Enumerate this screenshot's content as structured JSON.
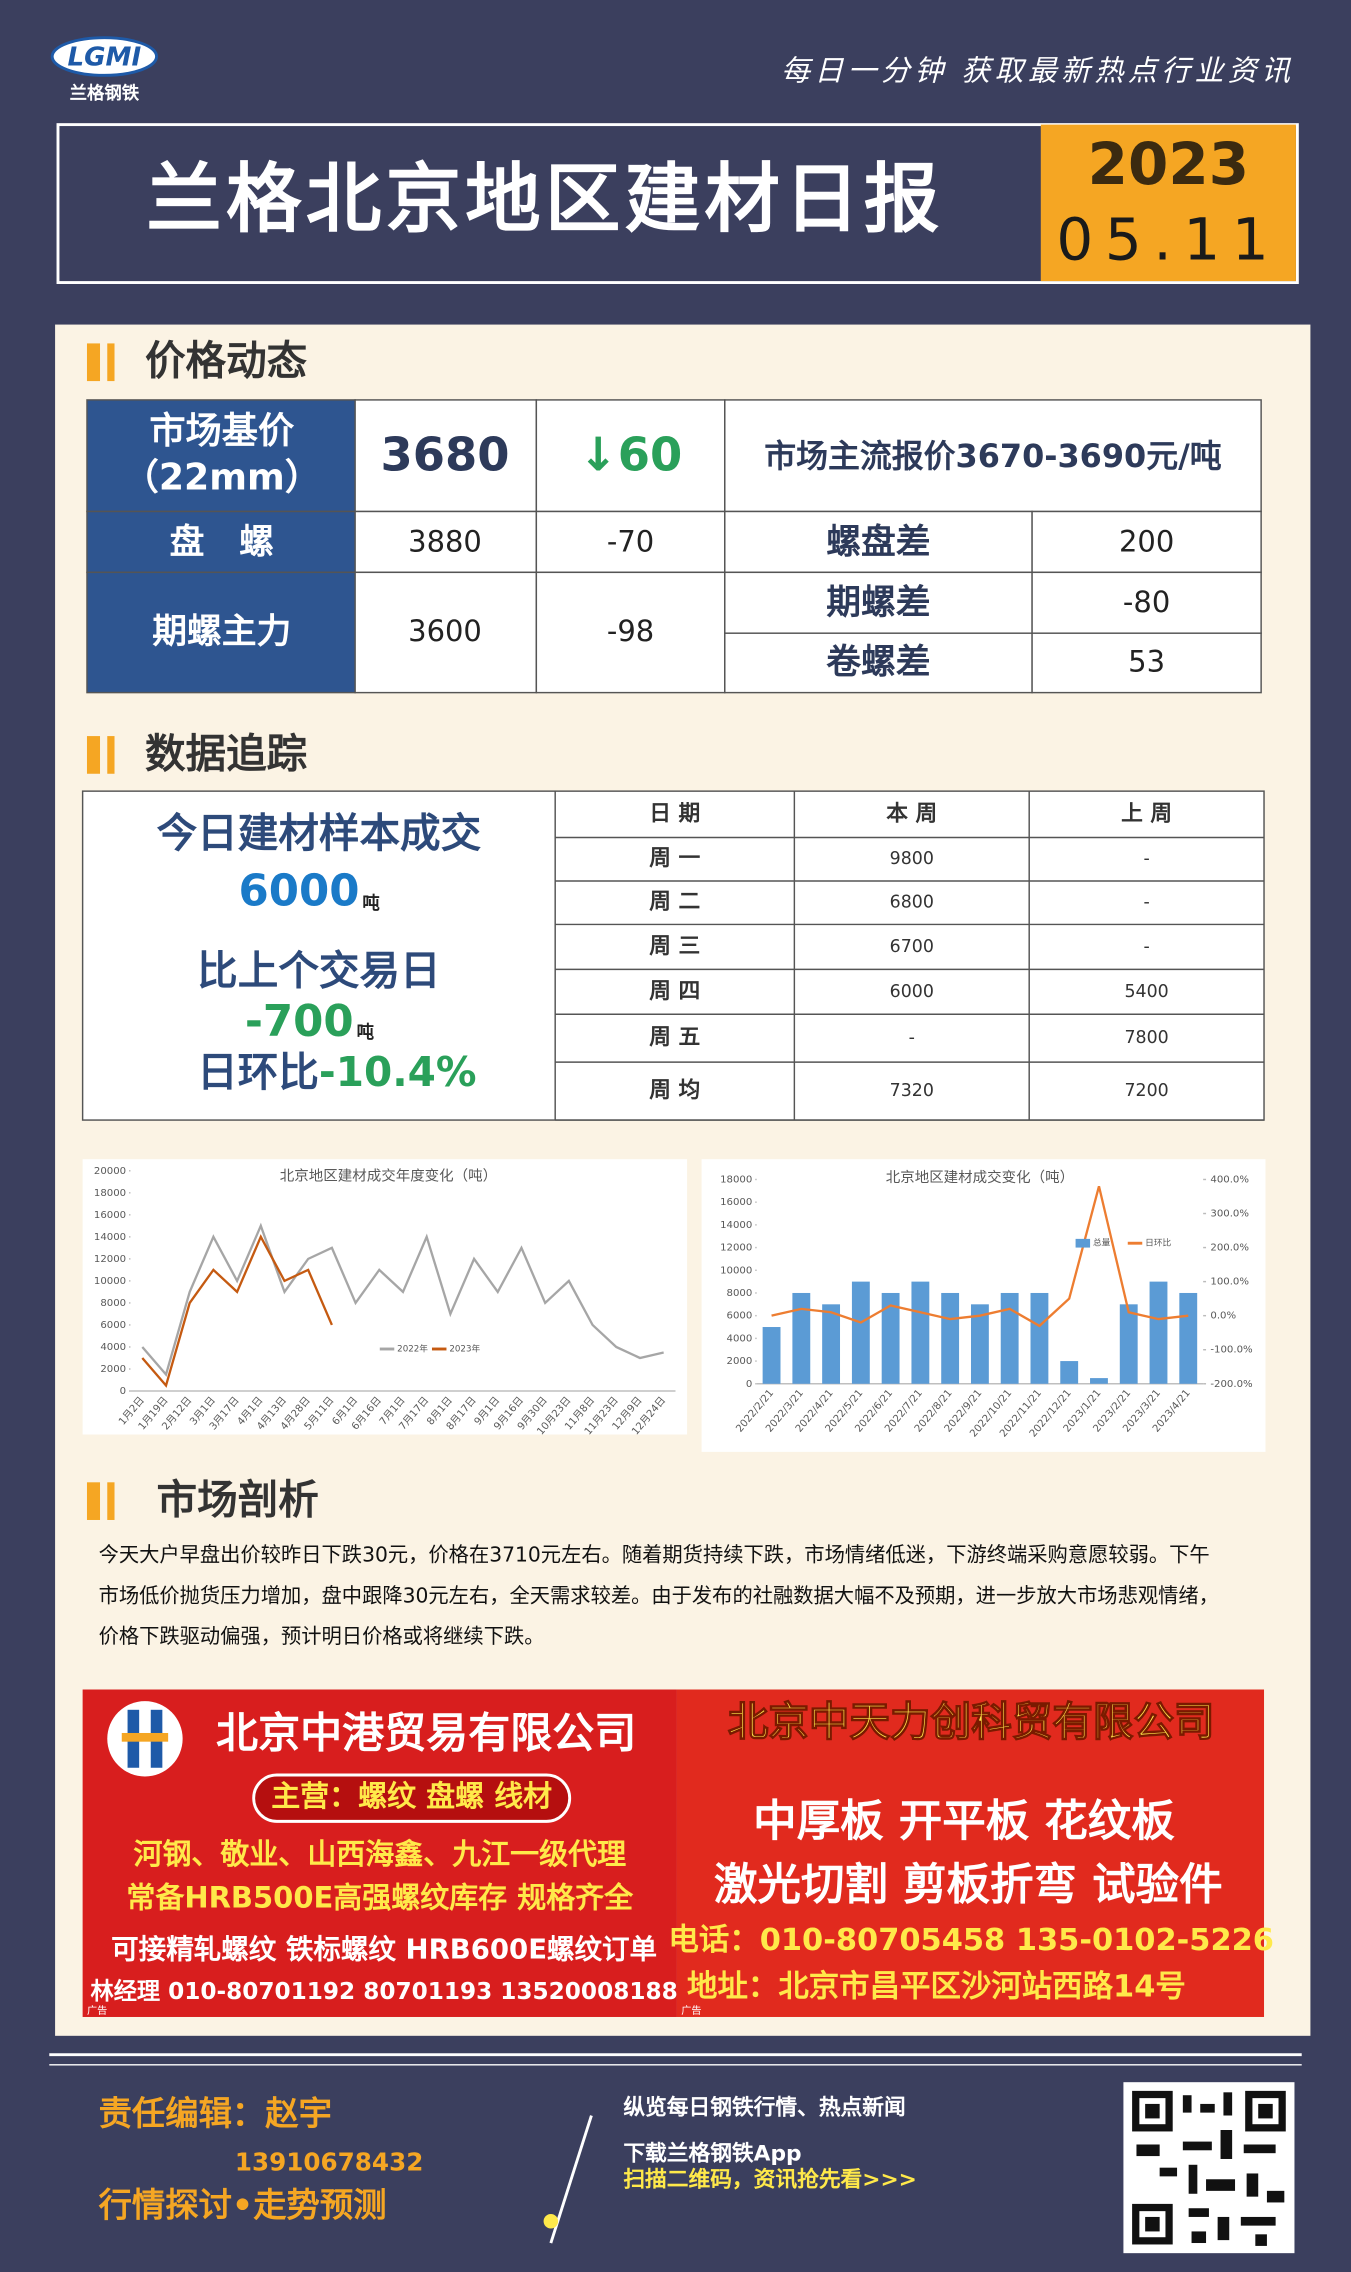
{
  "header": {
    "logo_text": "LGMI",
    "logo_name": "兰格钢铁",
    "slogan": "每日一分钟  获取最新热点行业资讯",
    "title": "兰格北京地区建材日报",
    "year": "2023",
    "date": "05.11"
  },
  "price": {
    "heading": "价格动态",
    "base_label": [
      "市场基价",
      "（22mm）"
    ],
    "base_price": "3680",
    "base_change": "↓60",
    "mainstream": "市场主流报价3670-3690元/吨",
    "rows": [
      [
        "盘　螺",
        "3880",
        "-70"
      ],
      [
        "期螺主力",
        "3600",
        "-98"
      ]
    ],
    "spreads": [
      [
        "螺盘差",
        "200"
      ],
      [
        "期螺差",
        "-80"
      ],
      [
        "卷螺差",
        "53"
      ]
    ]
  },
  "tracking": {
    "heading": "数据追踪",
    "summary": {
      "today_label": "今日建材样本成交",
      "today_value": "6000",
      "unit": "吨",
      "compare_label": "比上个交易日",
      "compare_value": "-700",
      "ratio_label": "日环比",
      "ratio_value": "-10.4%"
    },
    "table": {
      "header": [
        "日 期",
        "本 周",
        "上 周"
      ],
      "rows": [
        [
          "周 一",
          "9800",
          "-"
        ],
        [
          "周 二",
          "6800",
          "-"
        ],
        [
          "周 三",
          "6700",
          "-"
        ],
        [
          "周 四",
          "6000",
          "5400"
        ],
        [
          "周 五",
          "-",
          "7800"
        ],
        [
          "周 均",
          "7320",
          "7200"
        ]
      ]
    }
  },
  "chart_data": [
    {
      "type": "line",
      "title": "北京地区建材成交年度变化（吨）",
      "categories": [
        "1月2日",
        "1月19日",
        "2月12日",
        "3月1日",
        "3月17日",
        "4月1日",
        "4月13日",
        "4月28日",
        "5月11日",
        "6月1日",
        "6月16日",
        "7月1日",
        "7月17日",
        "8月1日",
        "8月17日",
        "9月1日",
        "9月16日",
        "9月30日",
        "10月23日",
        "11月8日",
        "11月23日",
        "12月9日",
        "12月24日"
      ],
      "series": [
        {
          "name": "2022年",
          "color": "#a6a6a6",
          "values": [
            4000,
            1500,
            9000,
            14000,
            10000,
            15000,
            9000,
            12000,
            13000,
            8000,
            11000,
            9000,
            14000,
            7000,
            12000,
            9000,
            13000,
            8000,
            10000,
            6000,
            4000,
            3000,
            3500
          ]
        },
        {
          "name": "2023年",
          "color": "#c55a11",
          "values": [
            3000,
            500,
            8000,
            11000,
            9000,
            14000,
            10000,
            11000,
            6000,
            null,
            null,
            null,
            null,
            null,
            null,
            null,
            null,
            null,
            null,
            null,
            null,
            null,
            null
          ]
        }
      ],
      "ylim": [
        0,
        20000
      ],
      "yticks": [
        0,
        2000,
        4000,
        6000,
        8000,
        10000,
        12000,
        14000,
        16000,
        18000,
        20000
      ]
    },
    {
      "type": "bar",
      "title": "北京地区建材成交变化（吨）",
      "categories": [
        "2022/2/21",
        "2022/3/21",
        "2022/4/21",
        "2022/5/21",
        "2022/6/21",
        "2022/7/21",
        "2022/8/21",
        "2022/9/21",
        "2022/10/21",
        "2022/11/21",
        "2022/12/21",
        "2023/1/21",
        "2023/2/21",
        "2023/3/21",
        "2023/4/21"
      ],
      "series": [
        {
          "name": "总量",
          "type": "bar",
          "color": "#5b9bd5",
          "values": [
            5000,
            8000,
            7000,
            9000,
            8000,
            9000,
            8000,
            7000,
            8000,
            8000,
            2000,
            500,
            7000,
            9000,
            8000
          ]
        },
        {
          "name": "日环比",
          "type": "line",
          "axis": "y2",
          "color": "#ed7d31",
          "values": [
            0,
            20,
            10,
            -20,
            30,
            10,
            -10,
            0,
            20,
            -30,
            50,
            380,
            10,
            -10,
            0
          ]
        }
      ],
      "ylim": [
        0,
        18000
      ],
      "yticks": [
        0,
        2000,
        4000,
        6000,
        8000,
        10000,
        12000,
        14000,
        16000,
        18000
      ],
      "y2lim": [
        -200,
        400
      ],
      "y2ticks": [
        {
          "value": -200,
          "label": "-200.0%"
        },
        {
          "value": -100,
          "label": "-100.0%"
        },
        {
          "value": 0,
          "label": "0.0%"
        },
        {
          "value": 100,
          "label": "100.0%"
        },
        {
          "value": 200,
          "label": "200.0%"
        },
        {
          "value": 300,
          "label": "300.0%"
        },
        {
          "value": 400,
          "label": "400.0%"
        }
      ]
    }
  ],
  "analysis": {
    "heading": "市场剖析",
    "lines": [
      "今天大户早盘出价较昨日下跌30元，价格在3710元左右。随着期货持续下跌，市场情绪低迷，下游终端采购意愿较弱。下午",
      "市场低价抛货压力增加，盘中跟降30元左右，全天需求较差。由于发布的社融数据大幅不及预期，进一步放大市场悲观情绪，",
      "价格下跌驱动偏强，预计明日价格或将继续下跌。"
    ]
  },
  "ads": {
    "left": {
      "company": "北京中港贸易有限公司",
      "main": "主营：螺纹 盘螺 线材",
      "lines": [
        "河钢、敬业、山西海鑫、九江一级代理",
        "常备HRB500E高强螺纹库存 规格齐全",
        "可接精轧螺纹 铁标螺纹 HRB600E螺纹订单"
      ],
      "contact": "林经理 010-80701192 80701193 13520008188",
      "tag": "广告"
    },
    "right": {
      "company": "北京中天力创科贸有限公司",
      "lines": [
        "中厚板 开平板 花纹板",
        "激光切割 剪板折弯 试验件"
      ],
      "phone": "电话：010-80705458 135-0102-5226",
      "address": "地址：北京市昌平区沙河站西路14号",
      "tag": "广告"
    }
  },
  "footer": {
    "editor": "责任编辑：赵宇",
    "phone": "13910678432",
    "slogan": "行情探讨•走势预测",
    "promo": [
      "纵览每日钢铁行情、热点新闻",
      "下载兰格钢铁App",
      "扫描二维码，资讯抢先看>>>"
    ]
  }
}
